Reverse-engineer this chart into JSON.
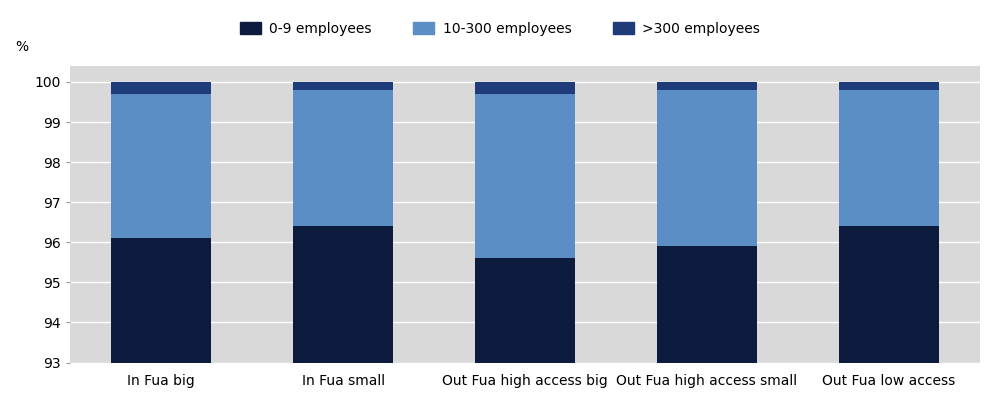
{
  "categories": [
    "In Fua big",
    "In Fua small",
    "Out Fua high access big",
    "Out Fua high access small",
    "Out Fua low access"
  ],
  "series": [
    {
      "label": "0-9 employees",
      "values": [
        96.1,
        96.4,
        95.6,
        95.9,
        96.4
      ],
      "color": "#0d1b3e"
    },
    {
      "label": "10-300 employees",
      "values": [
        3.6,
        3.4,
        4.1,
        3.9,
        3.4
      ],
      "color": "#5b8ec4"
    },
    {
      "label": ">300 employees",
      "values": [
        0.3,
        0.2,
        0.3,
        0.2,
        0.2
      ],
      "color": "#1f3c7a"
    }
  ],
  "ylim": [
    93,
    100.4
  ],
  "yticks": [
    93,
    94,
    95,
    96,
    97,
    98,
    99,
    100
  ],
  "ylabel": "%",
  "bar_width": 0.55,
  "plot_bg_color": "#d9d9d9",
  "fig_bg_color": "#ffffff",
  "legend_bg_color": "#d9d9d9",
  "grid_color": "#ffffff",
  "axis_fontsize": 10,
  "legend_fontsize": 10
}
